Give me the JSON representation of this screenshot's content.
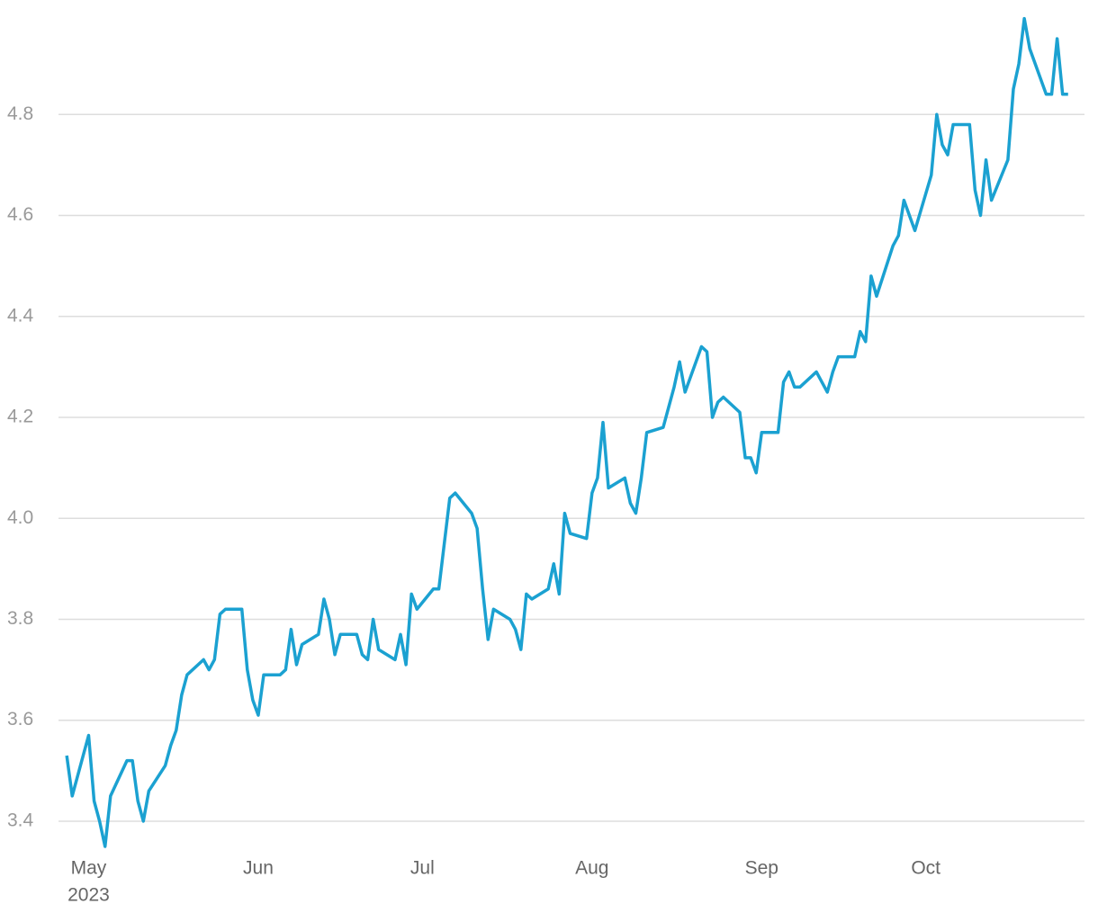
{
  "chart_data": {
    "type": "line",
    "x": [
      "2023-04-27",
      "2023-04-28",
      "2023-05-01",
      "2023-05-02",
      "2023-05-03",
      "2023-05-04",
      "2023-05-05",
      "2023-05-08",
      "2023-05-09",
      "2023-05-10",
      "2023-05-11",
      "2023-05-12",
      "2023-05-15",
      "2023-05-16",
      "2023-05-17",
      "2023-05-18",
      "2023-05-19",
      "2023-05-22",
      "2023-05-23",
      "2023-05-24",
      "2023-05-25",
      "2023-05-26",
      "2023-05-29",
      "2023-05-30",
      "2023-05-31",
      "2023-06-01",
      "2023-06-02",
      "2023-06-05",
      "2023-06-06",
      "2023-06-07",
      "2023-06-08",
      "2023-06-09",
      "2023-06-12",
      "2023-06-13",
      "2023-06-14",
      "2023-06-15",
      "2023-06-16",
      "2023-06-19",
      "2023-06-20",
      "2023-06-21",
      "2023-06-22",
      "2023-06-23",
      "2023-06-26",
      "2023-06-27",
      "2023-06-28",
      "2023-06-29",
      "2023-06-30",
      "2023-07-03",
      "2023-07-04",
      "2023-07-05",
      "2023-07-06",
      "2023-07-07",
      "2023-07-10",
      "2023-07-11",
      "2023-07-12",
      "2023-07-13",
      "2023-07-14",
      "2023-07-17",
      "2023-07-18",
      "2023-07-19",
      "2023-07-20",
      "2023-07-21",
      "2023-07-24",
      "2023-07-25",
      "2023-07-26",
      "2023-07-27",
      "2023-07-28",
      "2023-07-31",
      "2023-08-01",
      "2023-08-02",
      "2023-08-03",
      "2023-08-04",
      "2023-08-07",
      "2023-08-08",
      "2023-08-09",
      "2023-08-10",
      "2023-08-11",
      "2023-08-14",
      "2023-08-15",
      "2023-08-16",
      "2023-08-17",
      "2023-08-18",
      "2023-08-21",
      "2023-08-22",
      "2023-08-23",
      "2023-08-24",
      "2023-08-25",
      "2023-08-28",
      "2023-08-29",
      "2023-08-30",
      "2023-08-31",
      "2023-09-01",
      "2023-09-04",
      "2023-09-05",
      "2023-09-06",
      "2023-09-07",
      "2023-09-08",
      "2023-09-11",
      "2023-09-12",
      "2023-09-13",
      "2023-09-14",
      "2023-09-15",
      "2023-09-18",
      "2023-09-19",
      "2023-09-20",
      "2023-09-21",
      "2023-09-22",
      "2023-09-25",
      "2023-09-26",
      "2023-09-27",
      "2023-09-28",
      "2023-09-29",
      "2023-10-02",
      "2023-10-03",
      "2023-10-04",
      "2023-10-05",
      "2023-10-06",
      "2023-10-09",
      "2023-10-10",
      "2023-10-11",
      "2023-10-12",
      "2023-10-13",
      "2023-10-16",
      "2023-10-17",
      "2023-10-18",
      "2023-10-19",
      "2023-10-20",
      "2023-10-23",
      "2023-10-24",
      "2023-10-25",
      "2023-10-26",
      "2023-10-27"
    ],
    "series": [
      {
        "color": "#1ba1d1",
        "values": [
          3.53,
          3.45,
          3.57,
          3.44,
          3.4,
          3.35,
          3.45,
          3.52,
          3.52,
          3.44,
          3.4,
          3.46,
          3.51,
          3.55,
          3.58,
          3.65,
          3.69,
          3.72,
          3.7,
          3.72,
          3.81,
          3.82,
          3.82,
          3.7,
          3.64,
          3.61,
          3.69,
          3.69,
          3.7,
          3.78,
          3.71,
          3.75,
          3.77,
          3.84,
          3.8,
          3.73,
          3.77,
          3.77,
          3.73,
          3.72,
          3.8,
          3.74,
          3.72,
          3.77,
          3.71,
          3.85,
          3.82,
          3.86,
          3.86,
          3.95,
          4.04,
          4.05,
          4.01,
          3.98,
          3.86,
          3.76,
          3.82,
          3.8,
          3.78,
          3.74,
          3.85,
          3.84,
          3.86,
          3.91,
          3.85,
          4.01,
          3.97,
          3.96,
          4.05,
          4.08,
          4.19,
          4.06,
          4.08,
          4.03,
          4.01,
          4.08,
          4.17,
          4.18,
          4.22,
          4.26,
          4.31,
          4.25,
          4.34,
          4.33,
          4.2,
          4.23,
          4.24,
          4.21,
          4.12,
          4.12,
          4.09,
          4.17,
          4.17,
          4.27,
          4.29,
          4.26,
          4.26,
          4.29,
          4.27,
          4.25,
          4.29,
          4.32,
          4.32,
          4.37,
          4.35,
          4.48,
          4.44,
          4.54,
          4.56,
          4.63,
          4.6,
          4.57,
          4.68,
          4.8,
          4.74,
          4.72,
          4.78,
          4.78,
          4.65,
          4.6,
          4.71,
          4.63,
          4.71,
          4.85,
          4.9,
          4.99,
          4.93,
          4.84,
          4.84,
          4.95,
          4.84,
          4.84
        ]
      }
    ],
    "xlim": [
      "2023-04-25",
      "2023-10-30"
    ],
    "xticks": [
      {
        "value": "2023-05-01",
        "label": "May"
      },
      {
        "value": "2023-06-01",
        "label": "Jun"
      },
      {
        "value": "2023-07-01",
        "label": "Jul"
      },
      {
        "value": "2023-08-01",
        "label": "Aug"
      },
      {
        "value": "2023-09-01",
        "label": "Sep"
      },
      {
        "value": "2023-10-01",
        "label": "Oct"
      }
    ],
    "xtick_sublabels": [
      {
        "value": "2023-05-01",
        "label": "2023"
      }
    ],
    "ylim": [
      3.35,
      5.0
    ],
    "yticks": [
      3.4,
      3.6,
      3.8,
      {
        "value": 4,
        "label": "4.0"
      },
      4.2,
      4.4,
      4.6,
      4.8
    ],
    "grid": true
  }
}
